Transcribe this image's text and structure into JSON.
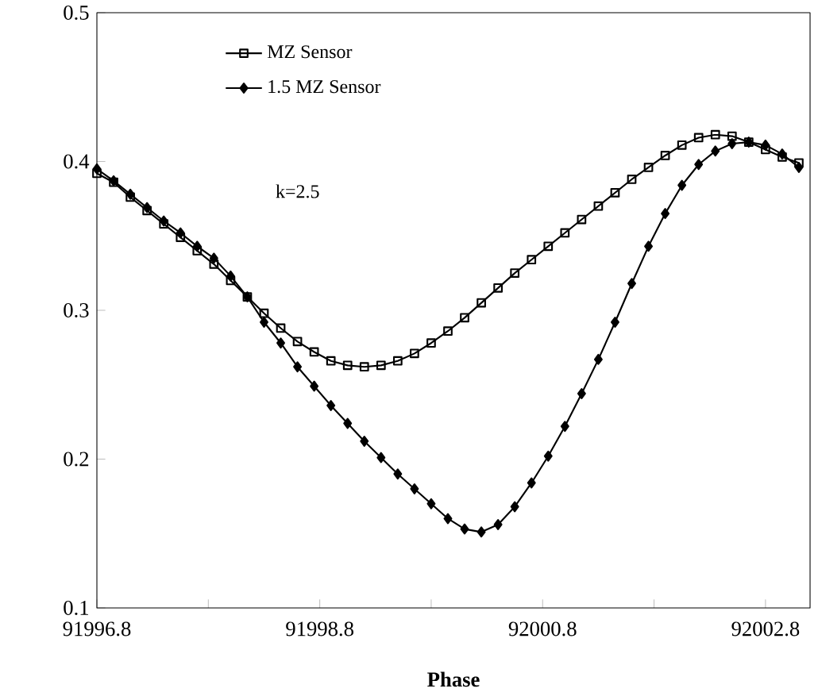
{
  "chart_data": {
    "type": "line",
    "xlabel": "Phase",
    "x": [
      91996.8,
      91996.95,
      91997.1,
      91997.25,
      91997.4,
      91997.55,
      91997.7,
      91997.85,
      91998.0,
      91998.15,
      91998.3,
      91998.45,
      91998.6,
      91998.75,
      91998.9,
      91999.05,
      91999.2,
      91999.35,
      91999.5,
      91999.65,
      91999.8,
      91999.95,
      92000.1,
      92000.25,
      92000.4,
      92000.55,
      92000.7,
      92000.85,
      92001.0,
      92001.15,
      92001.3,
      92001.45,
      92001.6,
      92001.75,
      92001.9,
      92002.05,
      92002.2,
      92002.35,
      92002.5,
      92002.65,
      92002.8,
      92002.95,
      92003.1
    ],
    "series": [
      {
        "name": "MZ Sensor",
        "color": "#000000",
        "marker": "square",
        "values": [
          0.392,
          0.386,
          0.376,
          0.367,
          0.358,
          0.349,
          0.34,
          0.331,
          0.32,
          0.309,
          0.298,
          0.288,
          0.279,
          0.272,
          0.266,
          0.263,
          0.262,
          0.263,
          0.266,
          0.271,
          0.278,
          0.286,
          0.295,
          0.305,
          0.315,
          0.325,
          0.334,
          0.343,
          0.352,
          0.361,
          0.37,
          0.379,
          0.388,
          0.396,
          0.404,
          0.411,
          0.416,
          0.418,
          0.417,
          0.413,
          0.408,
          0.403,
          0.399
        ]
      },
      {
        "name": "1.5 MZ Sensor",
        "color": "#000000",
        "marker": "diamond",
        "values": [
          0.395,
          0.387,
          0.378,
          0.369,
          0.36,
          0.352,
          0.343,
          0.335,
          0.323,
          0.309,
          0.292,
          0.278,
          0.262,
          0.249,
          0.236,
          0.224,
          0.212,
          0.201,
          0.19,
          0.18,
          0.17,
          0.16,
          0.153,
          0.151,
          0.156,
          0.168,
          0.184,
          0.202,
          0.222,
          0.244,
          0.267,
          0.292,
          0.318,
          0.343,
          0.365,
          0.384,
          0.398,
          0.407,
          0.412,
          0.413,
          0.411,
          0.405,
          0.396
        ]
      }
    ],
    "xlim": [
      91996.8,
      92003.2
    ],
    "xticks": [
      91996.8,
      {
        "value": 91997.8,
        "label": null
      },
      91998.8,
      {
        "value": 91999.8,
        "label": null
      },
      92000.8,
      {
        "value": 92001.8,
        "label": null
      },
      92002.8
    ],
    "ylim": [
      0.1,
      0.5
    ],
    "yticks": [
      0.1,
      0.2,
      0.3,
      0.4,
      0.5
    ],
    "legend": "top left",
    "grid": false,
    "line_style": "solid",
    "annotations": [
      "k=2.5"
    ]
  }
}
